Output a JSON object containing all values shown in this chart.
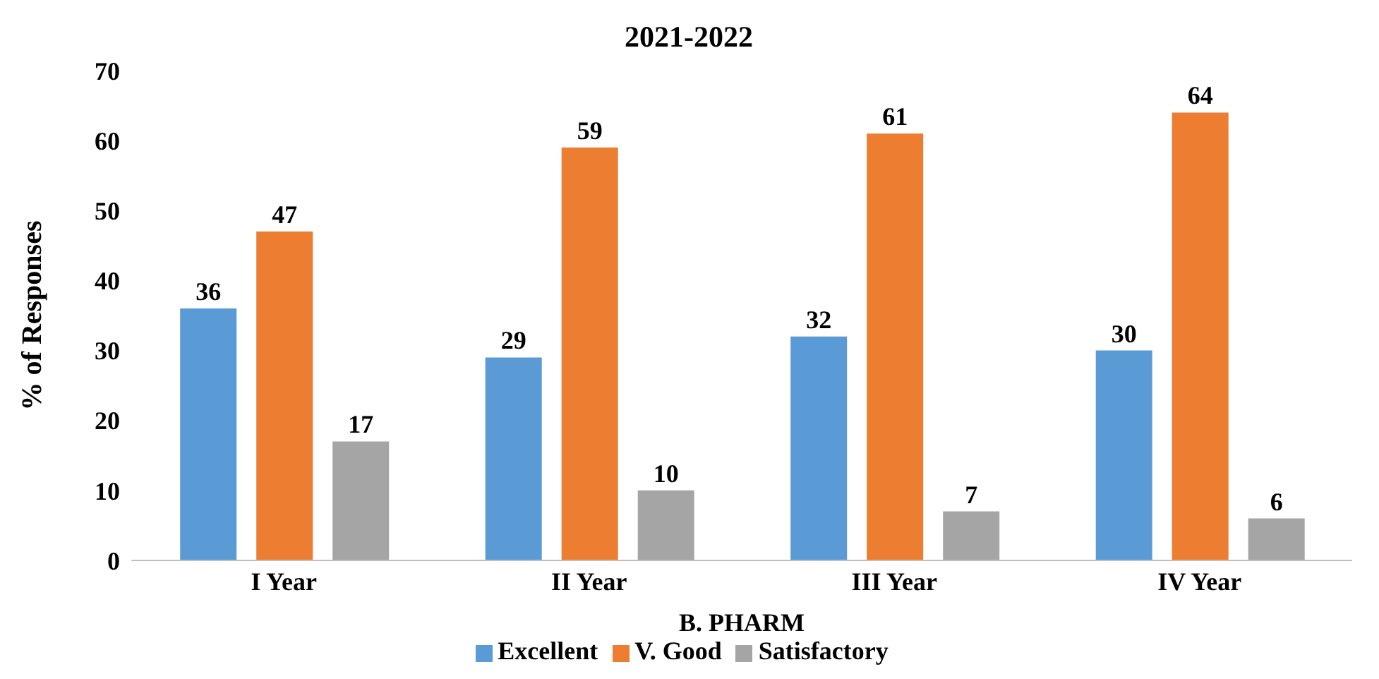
{
  "chart_data": {
    "type": "bar",
    "title": "2021-2022",
    "xlabel": "B. PHARM",
    "ylabel": "% of Responses",
    "categories": [
      "I Year",
      "II Year",
      "III Year",
      "IV Year"
    ],
    "series": [
      {
        "name": "Excellent",
        "color": "#5b9bd5",
        "values": [
          36,
          29,
          32,
          30
        ]
      },
      {
        "name": "V. Good",
        "color": "#ed7d31",
        "values": [
          47,
          59,
          61,
          64
        ]
      },
      {
        "name": "Satisfactory",
        "color": "#a5a5a5",
        "values": [
          17,
          10,
          7,
          6
        ]
      }
    ],
    "ylim": [
      0,
      70
    ],
    "yticks": [
      0,
      10,
      20,
      30,
      40,
      50,
      60,
      70
    ],
    "data_labels": true,
    "legend": "bottom"
  }
}
